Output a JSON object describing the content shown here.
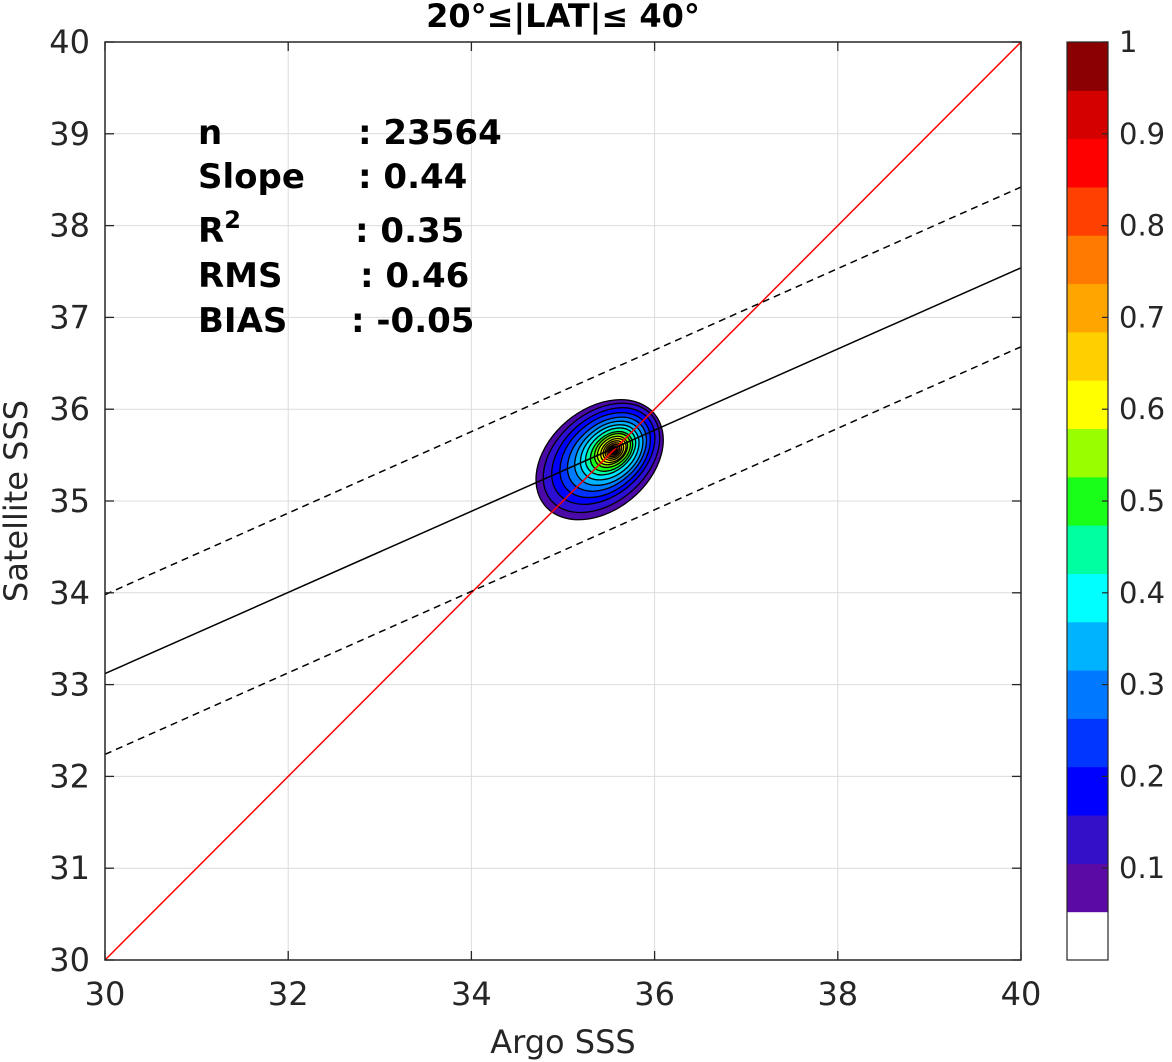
{
  "chart_data": {
    "type": "contour",
    "title": "20°≤|LAT|≤ 40°",
    "xlabel": "Argo SSS",
    "ylabel": "Satellite SSS",
    "xlim": [
      30,
      40
    ],
    "ylim": [
      30,
      40
    ],
    "xticks": [
      "30",
      "32",
      "34",
      "36",
      "38",
      "40"
    ],
    "yticks": [
      "30",
      "31",
      "32",
      "33",
      "34",
      "35",
      "36",
      "37",
      "38",
      "39",
      "40"
    ],
    "grid": true,
    "stats": {
      "n_label": "n",
      "n_value": ": 23564",
      "slope_label": "Slope",
      "slope_value": ": 0.44",
      "r2_label": "R",
      "r2_sup": "2",
      "r2_value": ": 0.35",
      "rms_label": "RMS",
      "rms_value": ": 0.46",
      "bias_label": "BIAS",
      "bias_value": ": -0.05"
    },
    "lines": [
      {
        "role": "one-to-one",
        "color": "#ff0000",
        "style": "solid",
        "x": [
          30,
          40
        ],
        "y": [
          30,
          40
        ]
      },
      {
        "role": "regression",
        "color": "#000000",
        "style": "solid",
        "x": [
          30,
          40
        ],
        "y": [
          33.12,
          37.54
        ]
      },
      {
        "role": "regression-upper",
        "color": "#000000",
        "style": "dashed",
        "x": [
          30,
          40
        ],
        "y": [
          33.98,
          38.42
        ]
      },
      {
        "role": "regression-lower",
        "color": "#000000",
        "style": "dashed",
        "x": [
          30,
          40
        ],
        "y": [
          32.24,
          36.68
        ]
      }
    ],
    "density_peak": {
      "x": 35.55,
      "y": 35.55
    },
    "contour_levels": [
      {
        "level": 0.05,
        "color": "#4b0aa8",
        "cx": 35.4,
        "cy": 35.45,
        "rx": 0.78,
        "ry": 0.55,
        "angle": 40
      },
      {
        "level": 0.1,
        "color": "#2d0fd3",
        "cx": 35.42,
        "cy": 35.47,
        "rx": 0.72,
        "ry": 0.49,
        "angle": 40
      },
      {
        "level": 0.15,
        "color": "#0000ff",
        "cx": 35.44,
        "cy": 35.49,
        "rx": 0.64,
        "ry": 0.43,
        "angle": 40
      },
      {
        "level": 0.2,
        "color": "#0033ff",
        "cx": 35.46,
        "cy": 35.5,
        "rx": 0.56,
        "ry": 0.38,
        "angle": 40
      },
      {
        "level": 0.25,
        "color": "#007bff",
        "cx": 35.48,
        "cy": 35.51,
        "rx": 0.49,
        "ry": 0.33,
        "angle": 40
      },
      {
        "level": 0.3,
        "color": "#00b3ff",
        "cx": 35.5,
        "cy": 35.52,
        "rx": 0.42,
        "ry": 0.29,
        "angle": 40
      },
      {
        "level": 0.35,
        "color": "#00e5ff",
        "cx": 35.51,
        "cy": 35.53,
        "rx": 0.36,
        "ry": 0.25,
        "angle": 40
      },
      {
        "level": 0.4,
        "color": "#00ffa2",
        "cx": 35.52,
        "cy": 35.54,
        "rx": 0.31,
        "ry": 0.21,
        "angle": 40
      },
      {
        "level": 0.45,
        "color": "#1aff1a",
        "cx": 35.53,
        "cy": 35.54,
        "rx": 0.26,
        "ry": 0.18,
        "angle": 40
      },
      {
        "level": 0.5,
        "color": "#7fff00",
        "cx": 35.54,
        "cy": 35.55,
        "rx": 0.22,
        "ry": 0.155,
        "angle": 40
      },
      {
        "level": 0.55,
        "color": "#ccff00",
        "cx": 35.54,
        "cy": 35.55,
        "rx": 0.185,
        "ry": 0.13,
        "angle": 40
      },
      {
        "level": 0.6,
        "color": "#ffff00",
        "cx": 35.55,
        "cy": 35.55,
        "rx": 0.155,
        "ry": 0.11,
        "angle": 40
      },
      {
        "level": 0.65,
        "color": "#ffd000",
        "cx": 35.55,
        "cy": 35.55,
        "rx": 0.125,
        "ry": 0.09,
        "angle": 40
      },
      {
        "level": 0.7,
        "color": "#ffa500",
        "cx": 35.55,
        "cy": 35.55,
        "rx": 0.1,
        "ry": 0.072,
        "angle": 40
      },
      {
        "level": 0.75,
        "color": "#ff7a00",
        "cx": 35.55,
        "cy": 35.55,
        "rx": 0.078,
        "ry": 0.056,
        "angle": 40
      },
      {
        "level": 0.8,
        "color": "#ff4000",
        "cx": 35.55,
        "cy": 35.55,
        "rx": 0.058,
        "ry": 0.042,
        "angle": 40
      },
      {
        "level": 0.85,
        "color": "#ff0000",
        "cx": 35.55,
        "cy": 35.55,
        "rx": 0.04,
        "ry": 0.03,
        "angle": 40
      },
      {
        "level": 0.9,
        "color": "#d40000",
        "cx": 35.55,
        "cy": 35.55,
        "rx": 0.022,
        "ry": 0.016,
        "angle": 40
      }
    ],
    "colorbar": {
      "range": [
        0,
        1
      ],
      "tick_labels": [
        "1",
        "0.9",
        "0.8",
        "0.7",
        "0.6",
        "0.5",
        "0.4",
        "0.3",
        "0.2",
        "0.1"
      ],
      "tick_values": [
        1,
        0.9,
        0.8,
        0.7,
        0.6,
        0.5,
        0.4,
        0.3,
        0.2,
        0.1
      ],
      "colors": [
        "#ffffff",
        "#5b0aa6",
        "#3410c8",
        "#0000ff",
        "#0036ff",
        "#0078ff",
        "#00b3ff",
        "#00ffff",
        "#00ffa0",
        "#1aff1a",
        "#99ff00",
        "#ffff00",
        "#ffd000",
        "#ffa500",
        "#ff7a00",
        "#ff4000",
        "#ff0000",
        "#d40000",
        "#8b0000"
      ]
    }
  }
}
